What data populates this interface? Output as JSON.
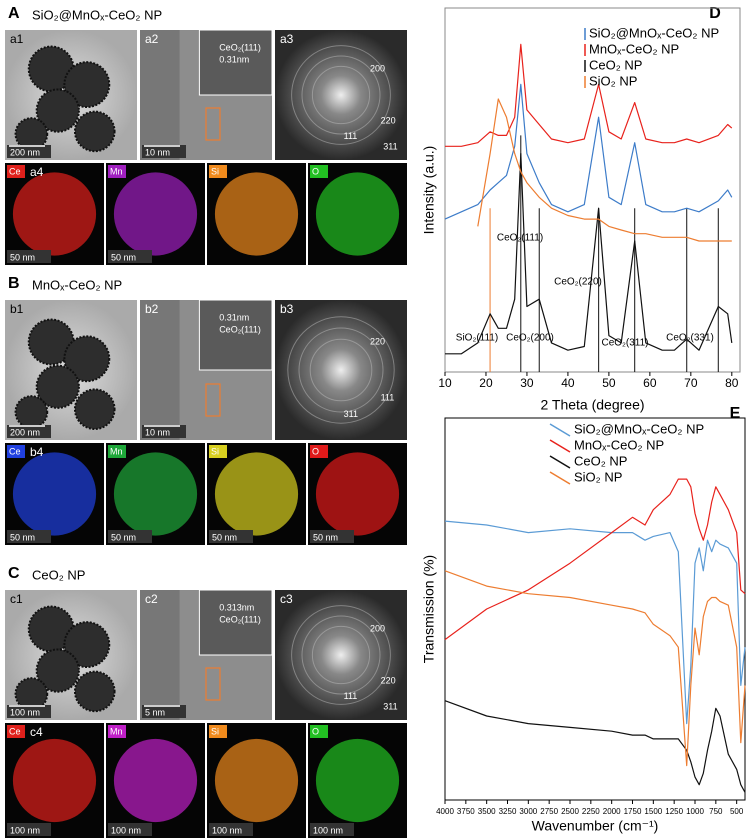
{
  "panels": [
    {
      "label": "A",
      "title": "SiO₂@MnOₓ-CeO₂ NP",
      "tem": [
        {
          "label": "a1",
          "scale": "200 nm"
        },
        {
          "label": "a2",
          "scale": "10 nm",
          "notes": [
            "CeO₂(111)",
            "0.31nm"
          ]
        },
        {
          "label": "a3",
          "notes": [
            "200",
            "220",
            "111",
            "311"
          ]
        }
      ],
      "eds_label": "a4",
      "eds": [
        {
          "element": "Ce",
          "color": "#e0201b",
          "scale": "50 nm"
        },
        {
          "element": "Mn",
          "color": "#a020c0",
          "scale": "50 nm"
        },
        {
          "element": "Si",
          "color": "#f08a1c"
        },
        {
          "element": "O",
          "color": "#22c022"
        }
      ]
    },
    {
      "label": "B",
      "title": "MnOₓ-CeO₂ NP",
      "tem": [
        {
          "label": "b1",
          "scale": "200 nm"
        },
        {
          "label": "b2",
          "scale": "10 nm",
          "notes": [
            "0.31nm",
            "CeO₂(111)"
          ]
        },
        {
          "label": "b3",
          "notes": [
            "220",
            "111",
            "311"
          ]
        }
      ],
      "eds_label": "b4",
      "eds": [
        {
          "element": "Ce",
          "color": "#2040e0",
          "scale": "50 nm"
        },
        {
          "element": "Mn",
          "color": "#1fa83a",
          "scale": "50 nm"
        },
        {
          "element": "Si",
          "color": "#d8d020",
          "scale": "50 nm"
        },
        {
          "element": "O",
          "color": "#e01a1a",
          "scale": "50 nm"
        }
      ]
    },
    {
      "label": "C",
      "title": "CeO₂ NP",
      "tem": [
        {
          "label": "c1",
          "scale": "100 nm"
        },
        {
          "label": "c2",
          "scale": "5 nm",
          "notes": [
            "0.313nm",
            "CeO₂(111)"
          ]
        },
        {
          "label": "c3",
          "notes": [
            "200",
            "220",
            "111",
            "311"
          ]
        }
      ],
      "eds_label": "c4",
      "eds": [
        {
          "element": "Ce",
          "color": "#e0201b",
          "scale": "100 nm"
        },
        {
          "element": "Mn",
          "color": "#c020c8",
          "scale": "100 nm"
        },
        {
          "element": "Si",
          "color": "#f08a1c",
          "scale": "100 nm"
        },
        {
          "element": "O",
          "color": "#22c022",
          "scale": "100 nm"
        }
      ]
    }
  ],
  "chart_data": [
    {
      "type": "line",
      "label": "D",
      "xlabel": "2 Theta (degree)",
      "ylabel": "Intensity (a.u.)",
      "x": [
        10,
        14,
        18,
        21,
        23,
        25,
        27,
        28.5,
        30,
        33,
        36,
        40,
        44,
        47.5,
        50,
        53,
        56.3,
        59,
        63,
        66,
        69,
        72,
        76.7,
        79,
        80
      ],
      "xlim": [
        10,
        82
      ],
      "xticks": [
        10,
        20,
        30,
        40,
        50,
        60,
        70,
        80
      ],
      "ylim": [
        0,
        100
      ],
      "legend": "upper left",
      "series": [
        {
          "name": "SiO₂@MnOₓ-CeO₂ NP",
          "color": "#3d7cc9",
          "values": [
            42,
            44,
            46,
            50,
            52,
            54,
            62,
            79,
            60,
            52,
            46,
            44,
            46,
            70,
            48,
            46,
            63,
            46,
            44,
            44,
            45,
            44,
            47,
            50,
            48
          ]
        },
        {
          "name": "MnOₓ-CeO₂ NP",
          "color": "#e8221c",
          "values": [
            62,
            62,
            63,
            66,
            65,
            65,
            70,
            90,
            72,
            68,
            64,
            63,
            64,
            79,
            66,
            64,
            74,
            64,
            63,
            63,
            64,
            63,
            65,
            68,
            67
          ]
        },
        {
          "name": "CeO₂ NP",
          "color": "#111111",
          "values": [
            5,
            5,
            8,
            16,
            12,
            12,
            20,
            60,
            18,
            20,
            8,
            6,
            7,
            45,
            10,
            8,
            36,
            8,
            6,
            6,
            9,
            6,
            18,
            16,
            8
          ]
        },
        {
          "name": "SiO₂ NP",
          "color": "#ed7d31",
          "values": [
            null,
            null,
            40,
            60,
            75,
            70,
            60,
            55,
            52,
            48,
            45,
            43,
            42,
            42,
            40,
            39,
            38,
            38,
            37,
            37,
            37,
            36,
            36,
            36,
            36
          ]
        }
      ],
      "ref_lines": [
        {
          "x": 21,
          "color": "#ed7d31"
        },
        {
          "x": 28.5,
          "color": "#111111"
        },
        {
          "x": 33,
          "color": "#111111"
        },
        {
          "x": 47.5,
          "color": "#111111"
        },
        {
          "x": 56.3,
          "color": "#111111"
        },
        {
          "x": 69,
          "color": "#111111"
        },
        {
          "x": 76.7,
          "color": "#111111"
        }
      ],
      "annotations": [
        "CeO₂(111)",
        "SiO₂(111)",
        "CeO₂(200)",
        "CeO₂(220)",
        "CeO₂(311)",
        "CeO₂(331)"
      ]
    },
    {
      "type": "line",
      "label": "E",
      "xlabel": "Wavenumber (cm⁻¹)",
      "ylabel": "Transmission (%)",
      "x": [
        4000,
        3500,
        3000,
        2500,
        2000,
        1750,
        1600,
        1500,
        1300,
        1200,
        1100,
        1050,
        1000,
        950,
        900,
        850,
        800,
        750,
        700,
        600,
        500,
        450,
        400
      ],
      "xlim": [
        4000,
        400
      ],
      "xticks": [
        4000,
        3750,
        3500,
        3250,
        3000,
        2750,
        2500,
        2250,
        2000,
        1750,
        1500,
        1250,
        1000,
        750,
        500
      ],
      "ylim": [
        0,
        100
      ],
      "legend": "upper right",
      "series": [
        {
          "name": "SiO₂@MnOₓ-CeO₂ NP",
          "color": "#5b9bd5",
          "values": [
            73,
            72,
            70,
            71,
            70,
            70,
            68,
            69,
            70,
            65,
            20,
            35,
            62,
            66,
            60,
            68,
            65,
            68,
            67,
            66,
            62,
            30,
            40
          ]
        },
        {
          "name": "MnOₓ-CeO₂ NP",
          "color": "#e8221c",
          "values": [
            42,
            50,
            55,
            62,
            70,
            74,
            72,
            76,
            80,
            84,
            84,
            82,
            75,
            71,
            68,
            72,
            78,
            82,
            80,
            76,
            70,
            55,
            54
          ]
        },
        {
          "name": "CeO₂ NP",
          "color": "#111111",
          "values": [
            26,
            22,
            20,
            19,
            18,
            17,
            17,
            16,
            16,
            16,
            13,
            10,
            6,
            4,
            7,
            13,
            18,
            24,
            22,
            12,
            8,
            4,
            2
          ]
        },
        {
          "name": "SiO₂ NP",
          "color": "#ed7d31",
          "values": [
            60,
            56,
            54,
            53,
            51,
            50,
            49,
            46,
            43,
            40,
            9,
            30,
            45,
            38,
            48,
            52,
            53,
            53,
            52,
            51,
            40,
            15,
            30
          ]
        }
      ]
    }
  ]
}
